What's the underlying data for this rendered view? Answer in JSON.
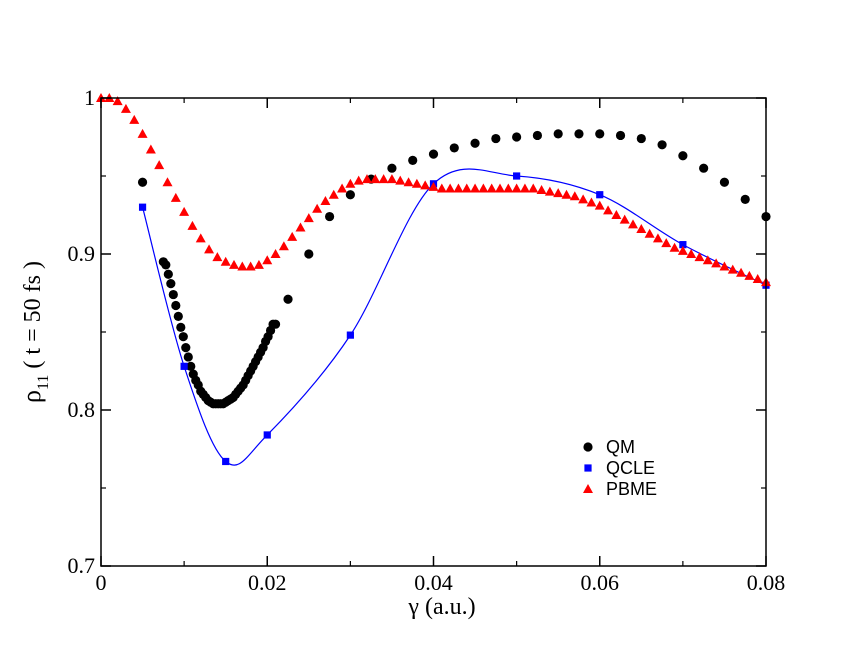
{
  "chart_data": {
    "type": "scatter",
    "xlabel": "γ  (a.u.)",
    "ylabel_main": "ρ",
    "ylabel_sub": "11",
    "ylabel_rest": " ( t = 50 fs )",
    "xlim": [
      0,
      0.08
    ],
    "ylim": [
      0.7,
      1.0
    ],
    "xticks": [
      0,
      0.02,
      0.04,
      0.06,
      0.08
    ],
    "xtick_labels": [
      "0",
      "0.02",
      "0.04",
      "0.06",
      "0.08"
    ],
    "yticks": [
      0.7,
      0.8,
      0.9,
      1.0
    ],
    "ytick_labels": [
      "0.7",
      "0.8",
      "0.9",
      "1"
    ],
    "grid": false,
    "legend_position": "bottom-right",
    "series": [
      {
        "name": "QM",
        "marker": "circle",
        "color": "#000000",
        "x": [
          0.005,
          0.0075,
          0.0078,
          0.0081,
          0.0084,
          0.0087,
          0.009,
          0.0093,
          0.0096,
          0.0099,
          0.0102,
          0.0105,
          0.0108,
          0.0111,
          0.0114,
          0.0117,
          0.012,
          0.0123,
          0.0126,
          0.0129,
          0.0132,
          0.0135,
          0.0138,
          0.0141,
          0.0144,
          0.0147,
          0.015,
          0.0153,
          0.0156,
          0.0159,
          0.0162,
          0.0165,
          0.0168,
          0.0171,
          0.0174,
          0.0177,
          0.018,
          0.0183,
          0.0186,
          0.0189,
          0.0192,
          0.0195,
          0.0198,
          0.0201,
          0.0204,
          0.0207,
          0.021,
          0.0225,
          0.025,
          0.0275,
          0.03,
          0.0325,
          0.035,
          0.0375,
          0.04,
          0.0425,
          0.045,
          0.0475,
          0.05,
          0.0525,
          0.055,
          0.0575,
          0.06,
          0.0625,
          0.065,
          0.0675,
          0.07,
          0.0725,
          0.075,
          0.0775,
          0.08
        ],
        "y": [
          0.946,
          0.895,
          0.893,
          0.887,
          0.881,
          0.874,
          0.867,
          0.86,
          0.853,
          0.847,
          0.84,
          0.834,
          0.828,
          0.823,
          0.819,
          0.816,
          0.812,
          0.81,
          0.808,
          0.806,
          0.805,
          0.804,
          0.804,
          0.804,
          0.804,
          0.804,
          0.805,
          0.806,
          0.807,
          0.808,
          0.81,
          0.812,
          0.814,
          0.816,
          0.819,
          0.822,
          0.825,
          0.828,
          0.831,
          0.834,
          0.837,
          0.84,
          0.844,
          0.847,
          0.851,
          0.855,
          0.855,
          0.871,
          0.9,
          0.924,
          0.938,
          0.948,
          0.955,
          0.96,
          0.964,
          0.968,
          0.971,
          0.974,
          0.975,
          0.976,
          0.977,
          0.977,
          0.977,
          0.976,
          0.974,
          0.97,
          0.963,
          0.955,
          0.946,
          0.935,
          0.924
        ]
      },
      {
        "name": "QCLE",
        "marker": "square",
        "color": "#0000ff",
        "x": [
          0.005,
          0.01,
          0.015,
          0.02,
          0.03,
          0.04,
          0.05,
          0.06,
          0.07,
          0.08
        ],
        "y": [
          0.93,
          0.828,
          0.767,
          0.784,
          0.848,
          0.945,
          0.95,
          0.938,
          0.906,
          0.88
        ]
      },
      {
        "name": "PBME",
        "marker": "triangle",
        "color": "#ff0000",
        "x": [
          0.0,
          0.001,
          0.002,
          0.003,
          0.004,
          0.005,
          0.006,
          0.007,
          0.008,
          0.009,
          0.01,
          0.011,
          0.012,
          0.013,
          0.014,
          0.015,
          0.016,
          0.017,
          0.018,
          0.019,
          0.02,
          0.021,
          0.022,
          0.023,
          0.024,
          0.025,
          0.026,
          0.027,
          0.028,
          0.029,
          0.03,
          0.031,
          0.032,
          0.033,
          0.034,
          0.035,
          0.036,
          0.037,
          0.038,
          0.039,
          0.04,
          0.041,
          0.042,
          0.043,
          0.044,
          0.045,
          0.046,
          0.047,
          0.048,
          0.049,
          0.05,
          0.051,
          0.052,
          0.053,
          0.054,
          0.055,
          0.056,
          0.057,
          0.058,
          0.059,
          0.06,
          0.061,
          0.062,
          0.063,
          0.064,
          0.065,
          0.066,
          0.067,
          0.068,
          0.069,
          0.07,
          0.071,
          0.072,
          0.073,
          0.074,
          0.075,
          0.076,
          0.077,
          0.078,
          0.079,
          0.08
        ],
        "y": [
          1.0,
          1.0,
          0.998,
          0.993,
          0.986,
          0.977,
          0.967,
          0.957,
          0.946,
          0.936,
          0.927,
          0.918,
          0.91,
          0.903,
          0.898,
          0.895,
          0.893,
          0.892,
          0.892,
          0.893,
          0.896,
          0.9,
          0.905,
          0.911,
          0.917,
          0.923,
          0.929,
          0.934,
          0.938,
          0.942,
          0.945,
          0.947,
          0.948,
          0.948,
          0.948,
          0.948,
          0.947,
          0.946,
          0.945,
          0.944,
          0.943,
          0.942,
          0.942,
          0.942,
          0.942,
          0.942,
          0.942,
          0.942,
          0.942,
          0.942,
          0.942,
          0.942,
          0.942,
          0.941,
          0.94,
          0.939,
          0.938,
          0.937,
          0.935,
          0.933,
          0.931,
          0.928,
          0.925,
          0.922,
          0.919,
          0.916,
          0.913,
          0.91,
          0.907,
          0.904,
          0.902,
          0.9,
          0.898,
          0.896,
          0.894,
          0.892,
          0.89,
          0.888,
          0.886,
          0.884,
          0.882
        ]
      }
    ]
  }
}
